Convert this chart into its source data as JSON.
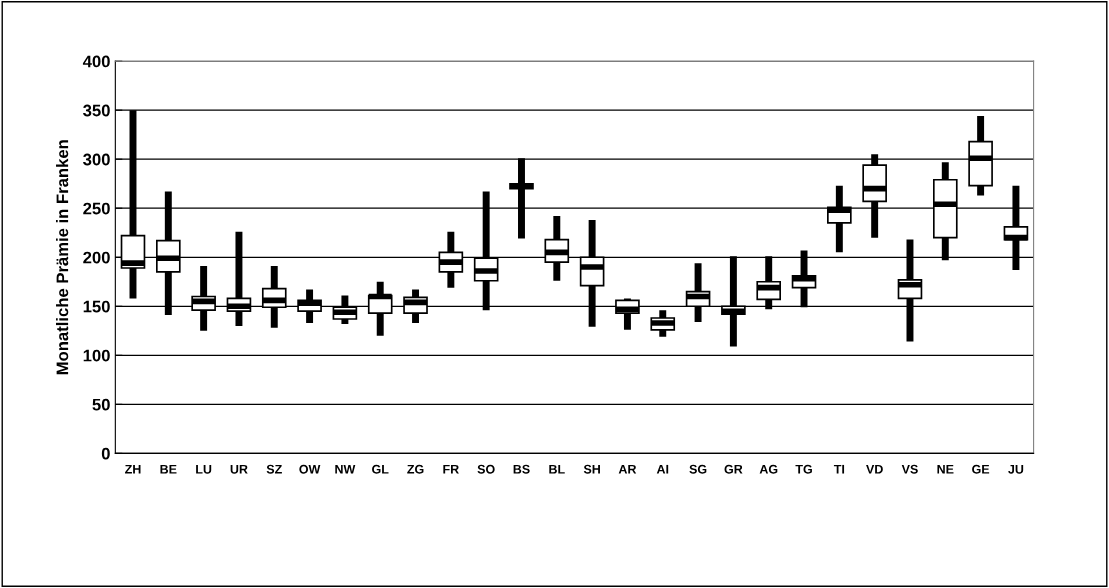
{
  "chart_data": {
    "type": "box",
    "ylabel": "Monatliche Prämie in Franken",
    "categories": [
      "ZH",
      "BE",
      "LU",
      "UR",
      "SZ",
      "OW",
      "NW",
      "GL",
      "ZG",
      "FR",
      "SO",
      "BS",
      "BL",
      "SH",
      "AR",
      "AI",
      "SG",
      "GR",
      "AG",
      "TG",
      "TI",
      "VD",
      "VS",
      "NE",
      "GE",
      "JU"
    ],
    "boxes": [
      {
        "low": 158,
        "q1": 189,
        "median": 194,
        "q3": 222,
        "high": 350
      },
      {
        "low": 141,
        "q1": 185,
        "median": 199,
        "q3": 217,
        "high": 267
      },
      {
        "low": 125,
        "q1": 146,
        "median": 155,
        "q3": 160,
        "high": 191
      },
      {
        "low": 130,
        "q1": 145,
        "median": 150,
        "q3": 158,
        "high": 226
      },
      {
        "low": 128,
        "q1": 149,
        "median": 156,
        "q3": 168,
        "high": 191
      },
      {
        "low": 133,
        "q1": 145,
        "median": 153,
        "q3": 156,
        "high": 167
      },
      {
        "low": 132,
        "q1": 137,
        "median": 144,
        "q3": 149,
        "high": 161
      },
      {
        "low": 120,
        "q1": 143,
        "median": 160,
        "q3": 161,
        "high": 175
      },
      {
        "low": 133,
        "q1": 143,
        "median": 154,
        "q3": 159,
        "high": 167
      },
      {
        "low": 169,
        "q1": 185,
        "median": 195,
        "q3": 205,
        "high": 226
      },
      {
        "low": 146,
        "q1": 176,
        "median": 186,
        "q3": 199,
        "high": 267
      },
      {
        "low": 219,
        "q1": 270,
        "median": 273,
        "q3": 275,
        "high": 301
      },
      {
        "low": 176,
        "q1": 195,
        "median": 205,
        "q3": 218,
        "high": 242
      },
      {
        "low": 129,
        "q1": 171,
        "median": 190,
        "q3": 200,
        "high": 238
      },
      {
        "low": 126,
        "q1": 143,
        "median": 147,
        "q3": 156,
        "high": 158
      },
      {
        "low": 119,
        "q1": 126,
        "median": 133,
        "q3": 138,
        "high": 146
      },
      {
        "low": 134,
        "q1": 150,
        "median": 160,
        "q3": 165,
        "high": 194
      },
      {
        "low": 109,
        "q1": 142,
        "median": 145,
        "q3": 150,
        "high": 201
      },
      {
        "low": 147,
        "q1": 157,
        "median": 169,
        "q3": 175,
        "high": 201
      },
      {
        "low": 149,
        "q1": 169,
        "median": 178,
        "q3": 181,
        "high": 207
      },
      {
        "low": 205,
        "q1": 235,
        "median": 248,
        "q3": 251,
        "high": 273
      },
      {
        "low": 220,
        "q1": 257,
        "median": 270,
        "q3": 294,
        "high": 305
      },
      {
        "low": 114,
        "q1": 158,
        "median": 172,
        "q3": 177,
        "high": 218
      },
      {
        "low": 197,
        "q1": 220,
        "median": 254,
        "q3": 279,
        "high": 297
      },
      {
        "low": 263,
        "q1": 273,
        "median": 301,
        "q3": 318,
        "high": 344
      },
      {
        "low": 187,
        "q1": 218,
        "median": 220,
        "q3": 231,
        "high": 273
      }
    ],
    "ylim": [
      0,
      400
    ],
    "yticks": [
      0,
      50,
      100,
      150,
      200,
      250,
      300,
      350,
      400
    ],
    "grid": "y"
  }
}
